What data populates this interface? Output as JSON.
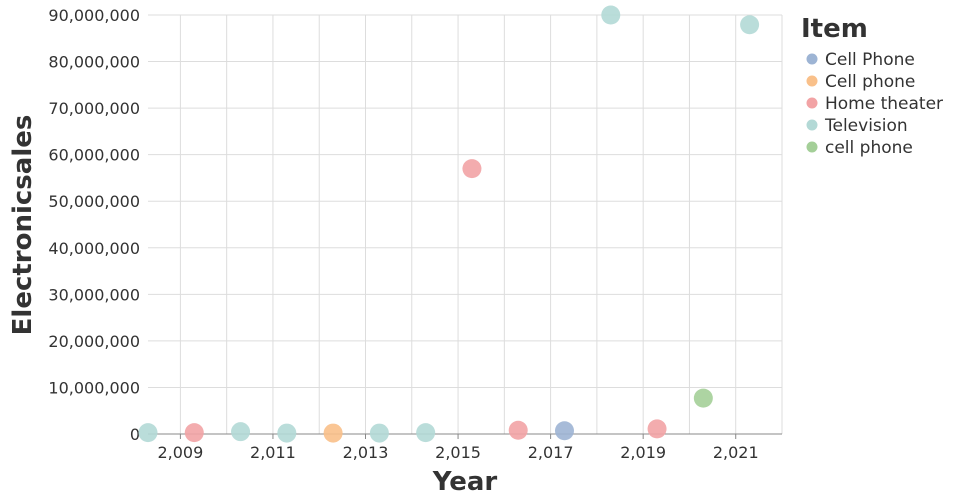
{
  "chart_data": {
    "type": "scatter",
    "xlabel": "Year",
    "ylabel": "Electronicsales",
    "xlim": [
      2008.3,
      2022
    ],
    "ylim": [
      0,
      90000000
    ],
    "x_ticks": [
      2009,
      2011,
      2013,
      2015,
      2017,
      2019,
      2021
    ],
    "x_tick_labels": [
      "2,009",
      "2,011",
      "2,013",
      "2,015",
      "2,017",
      "2,019",
      "2,021"
    ],
    "y_ticks": [
      0,
      10000000,
      20000000,
      30000000,
      40000000,
      50000000,
      60000000,
      70000000,
      80000000,
      90000000
    ],
    "y_tick_labels": [
      "0",
      "10,000,000",
      "20,000,000",
      "30,000,000",
      "40,000,000",
      "50,000,000",
      "60,000,000",
      "70,000,000",
      "80,000,000",
      "90,000,000"
    ],
    "grid": true,
    "legend": {
      "title": "Item",
      "placement": "right",
      "entries": [
        {
          "label": "Cell Phone",
          "color": "#9db4d4"
        },
        {
          "label": "Cell phone",
          "color": "#f9c08a"
        },
        {
          "label": "Home theater",
          "color": "#f2a3a5"
        },
        {
          "label": "Television",
          "color": "#b3d9d6"
        },
        {
          "label": "cell phone",
          "color": "#a4cf98"
        }
      ]
    },
    "points": [
      {
        "x": 2008.3,
        "y": 300000,
        "item": "Television"
      },
      {
        "x": 2009.3,
        "y": 300000,
        "item": "Home theater"
      },
      {
        "x": 2010.3,
        "y": 500000,
        "item": "Television"
      },
      {
        "x": 2011.3,
        "y": 200000,
        "item": "Television"
      },
      {
        "x": 2012.3,
        "y": 200000,
        "item": "Cell phone"
      },
      {
        "x": 2013.3,
        "y": 200000,
        "item": "Television"
      },
      {
        "x": 2014.3,
        "y": 300000,
        "item": "Television"
      },
      {
        "x": 2015.3,
        "y": 57000000,
        "item": "Home theater"
      },
      {
        "x": 2016.3,
        "y": 800000,
        "item": "Home theater"
      },
      {
        "x": 2017.3,
        "y": 700000,
        "item": "Cell Phone"
      },
      {
        "x": 2018.3,
        "y": 90000000,
        "item": "Television"
      },
      {
        "x": 2019.3,
        "y": 1100000,
        "item": "Home theater"
      },
      {
        "x": 2020.3,
        "y": 7700000,
        "item": "cell phone"
      },
      {
        "x": 2021.3,
        "y": 87900000,
        "item": "Television"
      }
    ]
  }
}
